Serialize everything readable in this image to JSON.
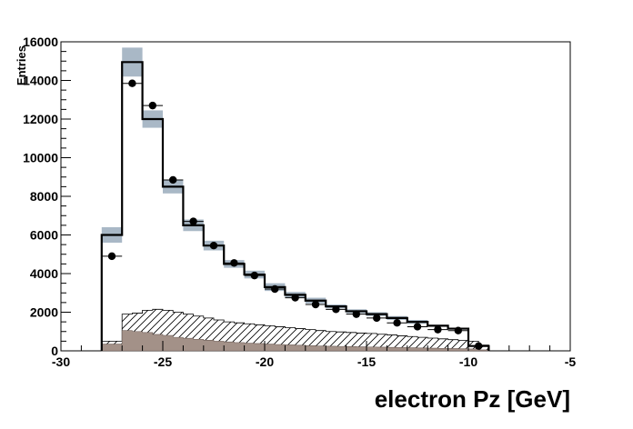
{
  "chart_data": {
    "type": "bar",
    "xlabel": "electron Pz [GeV]",
    "ylabel": "Entries",
    "xlim": [
      -30,
      -5
    ],
    "ylim": [
      0,
      16000
    ],
    "x_ticks": [
      -30,
      -25,
      -20,
      -15,
      -10,
      -5
    ],
    "y_ticks": [
      0,
      2000,
      4000,
      6000,
      8000,
      10000,
      12000,
      14000,
      16000
    ],
    "bin_edges": [
      -28,
      -27,
      -26,
      -25,
      -24,
      -23,
      -22,
      -21,
      -20,
      -19,
      -18,
      -17,
      -16,
      -15,
      -14,
      -13,
      -12,
      -11,
      -10,
      -9
    ],
    "grid": false,
    "legend": "none",
    "series": [
      {
        "kind": "mc-total-step",
        "values": [
          6000,
          14950,
          12000,
          8500,
          6500,
          5450,
          4500,
          3950,
          3300,
          2900,
          2600,
          2300,
          2050,
          1900,
          1700,
          1500,
          1300,
          1150,
          250
        ],
        "uncertainty": [
          400,
          750,
          450,
          350,
          300,
          250,
          200,
          200,
          200,
          150,
          150,
          100,
          100,
          100,
          100,
          100,
          50,
          50,
          30
        ],
        "band_color": "#a9b8c6",
        "line_color": "#000000"
      },
      {
        "kind": "background-hatched",
        "x_start": -28,
        "step": 0.5,
        "values": [
          500,
          500,
          1900,
          1950,
          2100,
          2150,
          2100,
          2000,
          1900,
          1800,
          1700,
          1600,
          1500,
          1450,
          1400,
          1350,
          1300,
          1250,
          1200,
          1150,
          1100,
          1050,
          1000,
          980,
          950,
          920,
          900,
          860,
          820,
          780,
          740,
          700,
          660,
          620,
          580,
          540,
          500,
          300
        ]
      },
      {
        "kind": "background-filled",
        "x_start": -28,
        "step": 0.5,
        "color": "#a39188",
        "values": [
          350,
          350,
          1050,
          1000,
          950,
          850,
          800,
          700,
          650,
          600,
          550,
          500,
          460,
          430,
          400,
          380,
          350,
          330,
          310,
          290,
          270,
          250,
          240,
          230,
          220,
          210,
          200,
          190,
          180,
          170,
          160,
          150,
          140,
          130,
          120,
          110,
          100,
          50
        ]
      },
      {
        "kind": "data-points",
        "x": [
          -27.5,
          -26.5,
          -25.5,
          -24.5,
          -23.5,
          -22.5,
          -21.5,
          -20.5,
          -19.5,
          -18.5,
          -17.5,
          -16.5,
          -15.5,
          -14.5,
          -13.5,
          -12.5,
          -11.5,
          -10.5,
          -9.5
        ],
        "values": [
          4900,
          13850,
          12700,
          8850,
          6700,
          5450,
          4550,
          3900,
          3200,
          2750,
          2400,
          2150,
          1900,
          1700,
          1450,
          1250,
          1100,
          1050,
          250
        ],
        "color": "#000000"
      }
    ]
  }
}
